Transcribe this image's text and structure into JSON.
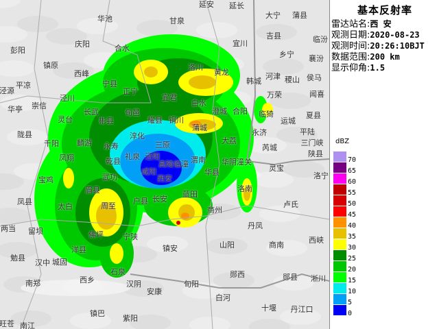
{
  "panel": {
    "title": "基本反射率",
    "rows": [
      {
        "label": "雷达站名:",
        "value": "西 安"
      },
      {
        "label": "观测日期:",
        "value": "2020-08-23"
      },
      {
        "label": "观测时间:",
        "value": "20:26:10BJT"
      },
      {
        "label": "数据范围:",
        "value": "200 km"
      },
      {
        "label": "显示仰角:",
        "value": "1.5"
      }
    ]
  },
  "legend": {
    "unit": "dBZ",
    "bins": [
      {
        "value": "70",
        "color": "#ad90f0"
      },
      {
        "value": "65",
        "color": "#780084"
      },
      {
        "value": "60",
        "color": "#ff00f0"
      },
      {
        "value": "55",
        "color": "#c00000"
      },
      {
        "value": "50",
        "color": "#d60000"
      },
      {
        "value": "45",
        "color": "#ff0000"
      },
      {
        "value": "40",
        "color": "#ff9000"
      },
      {
        "value": "35",
        "color": "#e7c000"
      },
      {
        "value": "30",
        "color": "#ffff00"
      },
      {
        "value": "25",
        "color": "#008e00"
      },
      {
        "value": "20",
        "color": "#00c800"
      },
      {
        "value": "15",
        "color": "#00ff00"
      },
      {
        "value": "10",
        "color": "#00ecec"
      },
      {
        "value": "5",
        "color": "#01a0f6"
      },
      {
        "value": "0",
        "color": "#0000f6"
      }
    ]
  },
  "map": {
    "cities": [
      "延安",
      "延长",
      "大宁",
      "蒲县",
      "甘泉",
      "宜川",
      "吉县",
      "临汾",
      "乡宁",
      "襄汾",
      "河津",
      "稷山",
      "侯马",
      "韩城",
      "万荣",
      "闻喜",
      "合阳",
      "临猗",
      "运城",
      "夏县",
      "永济",
      "平陆",
      "大荔",
      "芮城",
      "三门峡",
      "陕县",
      "华阴潼关",
      "华池",
      "庆阳",
      "合水",
      "彭阳",
      "镇原",
      "西峰",
      "宁县",
      "平凉",
      "泾源",
      "正宁",
      "泾川",
      "华亭",
      "崇信",
      "长武",
      "旬邑",
      "灵台",
      "彬县",
      "陇县",
      "淳化",
      "千阳",
      "麟游",
      "永寿",
      "凤翔",
      "耀县",
      "铜川",
      "三原",
      "泾阳",
      "礼泉",
      "乾县",
      "高陵临潼",
      "渭南",
      "咸阳",
      "西安",
      "武功",
      "眉县",
      "户县",
      "长安",
      "蓝田",
      "华县",
      "黄龙",
      "洛川",
      "宜君",
      "白水",
      "澄城",
      "蒲城",
      "宝鸡",
      "凤县",
      "太白",
      "周至",
      "两当",
      "留坝",
      "佛坪",
      "宁陕",
      "洋县",
      "勉县",
      "汉中",
      "城固",
      "石泉",
      "西乡",
      "南郑",
      "汉阴",
      "安康",
      "镇巴",
      "紫阳",
      "旺苍",
      "南江",
      "灵宝",
      "洛宁",
      "洛南",
      "商州",
      "卢氏",
      "丹凤",
      "山阳",
      "商南",
      "西峡",
      "镇安",
      "郧西",
      "郧县",
      "淅川",
      "旬阳",
      "白河",
      "十堰",
      "丹江口"
    ]
  }
}
